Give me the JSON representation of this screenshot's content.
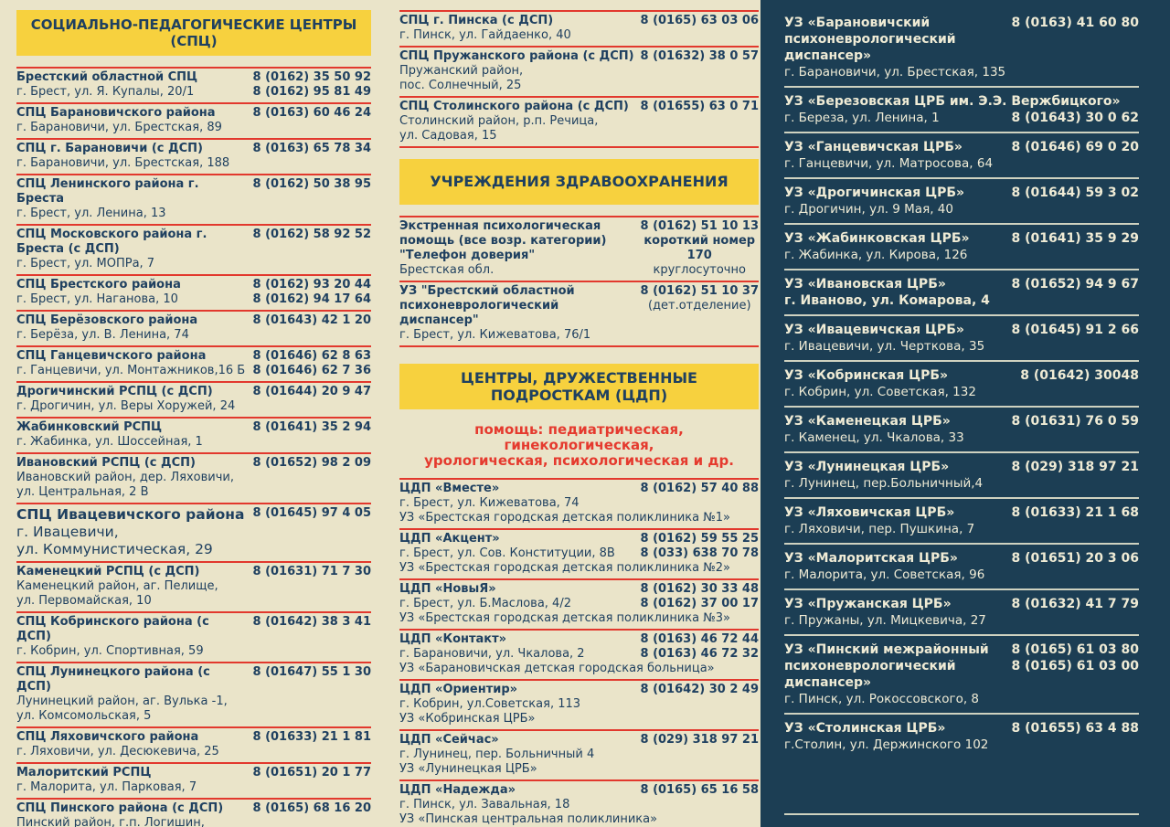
{
  "colors": {
    "background": "#EAE4C9",
    "header_bg": "#F7D13E",
    "text_primary": "#1F4060",
    "accent_red": "#E2382D",
    "panel_bg": "#1C3E54",
    "panel_text": "#EFEBD5",
    "panel_divider": "#CFD2C0"
  },
  "left_column": {
    "header": "СОЦИАЛЬНО-ПЕДАГОГИЧЕСКИЕ ЦЕНТРЫ (СПЦ)",
    "entries": [
      {
        "name": "Брестский областной СПЦ",
        "address": [
          "г. Брест, ул. Я. Купалы, 20/1"
        ],
        "phones": [
          "8 (0162) 35 50 92",
          "8 (0162) 95 81 49"
        ]
      },
      {
        "name": "СПЦ Барановичского района",
        "address": [
          "г. Барановичи, ул. Брестская, 89"
        ],
        "phones": [
          "8 (0163) 60 46 24"
        ]
      },
      {
        "name": "СПЦ г. Барановичи (с ДСП)",
        "address": [
          "г. Барановичи, ул. Брестская, 188"
        ],
        "phones": [
          "8 (0163) 65 78 34"
        ]
      },
      {
        "name": "СПЦ Ленинского района г. Бреста",
        "address": [
          "г. Брест, ул. Ленина, 13"
        ],
        "phones": [
          "8 (0162) 50 38 95"
        ]
      },
      {
        "name": "СПЦ Московского района г. Бреста (с ДСП)",
        "address": [
          "г. Брест, ул. МОПРа, 7"
        ],
        "phones": [
          "8 (0162) 58 92 52"
        ]
      },
      {
        "name": "СПЦ Брестского района",
        "address": [
          "г. Брест, ул. Наганова, 10"
        ],
        "phones": [
          "8 (0162) 93 20 44",
          "8 (0162) 94 17 64"
        ]
      },
      {
        "name": "СПЦ Берёзовского района",
        "address": [
          "г. Берёза, ул. В. Ленина, 74"
        ],
        "phones": [
          "8 (01643) 42 1 20"
        ]
      },
      {
        "name": "СПЦ Ганцевичского района",
        "address": [
          "г. Ганцевичи, ул. Монтажников,16 Б"
        ],
        "phones": [
          "8 (01646) 62 8 63",
          "8 (01646) 62 7 36"
        ]
      },
      {
        "name": "Дрогичинский РСПЦ (с ДСП)",
        "address": [
          "г. Дрогичин, ул. Веры Хоружей, 24"
        ],
        "phones": [
          "8 (01644) 20 9 47"
        ]
      },
      {
        "name": "Жабинковский РСПЦ",
        "address": [
          "г. Жабинка, ул. Шоссейная, 1"
        ],
        "phones": [
          "8 (01641) 35 2 94"
        ]
      },
      {
        "name": "Ивановский РСПЦ (с ДСП)",
        "address": [
          "Ивановский район, дер. Ляховичи,",
          "ул. Центральная, 2 В"
        ],
        "phones": [
          "8 (01652) 98 2 09"
        ]
      },
      {
        "name": "СПЦ Ивацевичского района",
        "address": [
          "г. Ивацевичи,",
          "ул. Коммунистическая, 29"
        ],
        "phones": [
          "8 (01645) 97 4 05"
        ],
        "large": true
      },
      {
        "name": "Каменецкий РСПЦ (с ДСП)",
        "address": [
          "Каменецкий район, аг. Пелище,",
          "ул. Первомайская, 10"
        ],
        "phones": [
          "8 (01631) 71 7 30"
        ]
      },
      {
        "name": "СПЦ Кобринского района (с ДСП)",
        "address": [
          "г. Кобрин, ул. Спортивная, 59"
        ],
        "phones": [
          "8 (01642) 38 3 41"
        ]
      },
      {
        "name": "СПЦ Лунинецкого района (с ДСП)",
        "address": [
          "Лунинецкий район, аг. Вулька -1,",
          "ул. Комсомольская, 5"
        ],
        "phones": [
          "8 (01647) 55 1 30"
        ]
      },
      {
        "name": "СПЦ Ляховичского района",
        "address": [
          "г. Ляховичи, ул. Десюкевича, 25"
        ],
        "phones": [
          "8 (01633) 21 1 81"
        ]
      },
      {
        "name": "Малоритский РСПЦ",
        "address": [
          "г. Малорита, ул. Парковая, 7"
        ],
        "phones": [
          "8 (01651) 20 1 77"
        ]
      },
      {
        "name": "СПЦ Пинского района (с ДСП)",
        "address": [
          "Пинский район, г.п. Логишин,",
          "ул. Ленина, 28"
        ],
        "phones": [
          "8 (0165) 68 16 20"
        ]
      }
    ]
  },
  "middle_column": {
    "spc_entries": [
      {
        "name": "СПЦ г. Пинска (с ДСП)",
        "address": [
          "г. Пинск, ул. Гайдаенко, 40"
        ],
        "phones": [
          "8 (0165) 63 03 06"
        ]
      },
      {
        "name": "СПЦ Пружанского района (с ДСП)",
        "address": [
          "Пружанский район,",
          "пос. Солнечный, 25"
        ],
        "phones": [
          "8 (01632) 38 0 57"
        ]
      },
      {
        "name": "СПЦ Столинского района (с ДСП)",
        "address": [
          "Столинский район, р.п. Речица,",
          "ул. Садовая, 15"
        ],
        "phones": [
          "8 (01655) 63 0 71"
        ]
      }
    ],
    "health_header": "УЧРЕЖДЕНИЯ ЗДРАВООХРАНЕНИЯ",
    "health_entries": [
      {
        "name_lines": [
          "Экстренная психологическая",
          "помощь  (все возр. категории)",
          "\"Телефон доверия\""
        ],
        "address": [
          "Брестская обл."
        ],
        "phone_lines": [
          {
            "text": "8 (0162) 51 10 13",
            "bold": true
          },
          {
            "text": "короткий номер",
            "bold": true
          },
          {
            "text": "170",
            "bold": true
          },
          {
            "text": "круглосуточно",
            "bold": false
          }
        ]
      },
      {
        "name_lines": [
          "УЗ \"Брестский областной",
          "психоневрологический диспансер\""
        ],
        "address": [
          "г. Брест, ул. Кижеватова, 76/1"
        ],
        "phone_lines": [
          {
            "text": "8 (0162) 51 10 37",
            "bold": true
          },
          {
            "text": "(дет.отделение)",
            "bold": false
          }
        ]
      }
    ],
    "cdp_header": "ЦЕНТРЫ, ДРУЖЕСТВЕННЫЕ ПОДРОСТКАМ (ЦДП)",
    "cdp_note_lines": [
      "помощь: педиатрическая, гинекологическая,",
      "урологическая, психологическая и др."
    ],
    "cdp_entries": [
      {
        "name": "ЦДП «Вместе»",
        "address": "г. Брест, ул. Кижеватова, 74",
        "org": "УЗ «Брестская городская детская поликлиника №1»",
        "phones": [
          "8 (0162) 57 40 88"
        ]
      },
      {
        "name": "ЦДП «Акцент»",
        "address": "г. Брест, ул. Сов. Конституции, 8В",
        "org": "УЗ «Брестская городская детская поликлиника №2»",
        "phones": [
          "8 (0162) 59 55 25",
          "8 (033) 638 70 78"
        ]
      },
      {
        "name": "ЦДП «НовыЯ»",
        "address": "г. Брест, ул. Б.Маслова, 4/2",
        "org": "УЗ «Брестская городская детская поликлиника №3»",
        "phones": [
          "8 (0162) 30 33 48",
          "8 (0162) 37 00 17"
        ]
      },
      {
        "name": "ЦДП «Контакт»",
        "address": "г. Барановичи, ул. Чкалова, 2",
        "org": "УЗ «Барановичская детская городская больница»",
        "phones": [
          "8 (0163) 46 72 44",
          "8 (0163) 46 72 32"
        ]
      },
      {
        "name": "ЦДП «Ориентир»",
        "address": "г. Кобрин, ул.Советская, 113",
        "org": "УЗ «Кобринская ЦРБ»",
        "phones": [
          "8 (01642) 30 2 49"
        ]
      },
      {
        "name": "ЦДП «Сейчас»",
        "address": "г. Лунинец, пер. Больничный 4",
        "org": "УЗ «Лунинецкая ЦРБ»",
        "phones": [
          "8 (029) 318 97 21"
        ]
      },
      {
        "name": "ЦДП «Надежда»",
        "address": "г. Пинск, ул. Завальная, 18",
        "org": "УЗ «Пинская центральная поликлиника»",
        "phones": [
          "8 (0165) 65 16 58"
        ]
      }
    ]
  },
  "right_column": {
    "entries": [
      {
        "name": "УЗ «Барановичский психоневрологический диспансер»",
        "address": "г. Барановичи, ул. Брестская, 135",
        "phones": [
          "8 (0163) 41 60 80"
        ]
      },
      {
        "name": "УЗ «Березовская ЦРБ им. Э.Э. Вержбицкого»",
        "address": "г. Береза, ул. Ленина, 1",
        "phones": [
          "8 (01643) 30 0 62"
        ],
        "name_full": true
      },
      {
        "name": "УЗ «Ганцевичская ЦРБ»",
        "address": "г. Ганцевичи, ул. Матросова, 64",
        "phones": [
          "8 (01646) 69 0 20"
        ]
      },
      {
        "name": "УЗ «Дрогичинская ЦРБ»",
        "address": "г. Дрогичин, ул. 9 Мая, 40",
        "phones": [
          "8 (01644) 59 3 02"
        ]
      },
      {
        "name": "УЗ «Жабинковская ЦРБ»",
        "address": "г. Жабинка, ул. Кирова, 126",
        "phones": [
          "8 (01641) 35 9 29"
        ]
      },
      {
        "name": "УЗ «Ивановская ЦРБ»",
        "address": "г. Иваново, ул. Комарова, 4",
        "phones": [
          "8 (01652) 94 9 67"
        ],
        "address_bold": true
      },
      {
        "name": "УЗ «Ивацевичская ЦРБ»",
        "address": "г. Ивацевичи, ул. Черткова, 35",
        "phones": [
          "8 (01645) 91 2 66"
        ]
      },
      {
        "name": "УЗ «Кобринская ЦРБ»",
        "address": "г. Кобрин, ул. Советская, 132",
        "phones": [
          "8 (01642) 30048"
        ]
      },
      {
        "name": "УЗ «Каменецкая ЦРБ»",
        "address": "г. Каменец, ул. Чкалова, 33",
        "phones": [
          "8 (01631) 76 0 59"
        ]
      },
      {
        "name": "УЗ «Лунинецкая ЦРБ»",
        "address": "г. Лунинец, пер.Больничный,4",
        "phones": [
          "8 (029) 318 97 21"
        ]
      },
      {
        "name": "УЗ «Ляховичская ЦРБ»",
        "address": "г. Ляховичи, пер. Пушкина, 7",
        "phones": [
          "8 (01633) 21 1 68"
        ]
      },
      {
        "name": "УЗ «Малоритская ЦРБ»",
        "address": "г. Малорита, ул. Советская, 96",
        "phones": [
          "8 (01651) 20 3 06"
        ]
      },
      {
        "name": "УЗ «Пружанская ЦРБ»",
        "address": "г. Пружаны, ул. Мицкевича, 27",
        "phones": [
          "8 (01632) 41 7 79"
        ]
      },
      {
        "name": "УЗ «Пинский межрайонный психоневрологический диспансер»",
        "address": "г. Пинск, ул. Рокоссовского, 8",
        "phones": [
          "8 (0165) 61 03 80",
          "8 (0165) 61 03 00"
        ]
      },
      {
        "name": "УЗ «Столинская ЦРБ»",
        "address": "г.Столин, ул. Держинского 102",
        "phones": [
          "8 (01655) 63 4 88"
        ],
        "no_border": true
      }
    ]
  }
}
